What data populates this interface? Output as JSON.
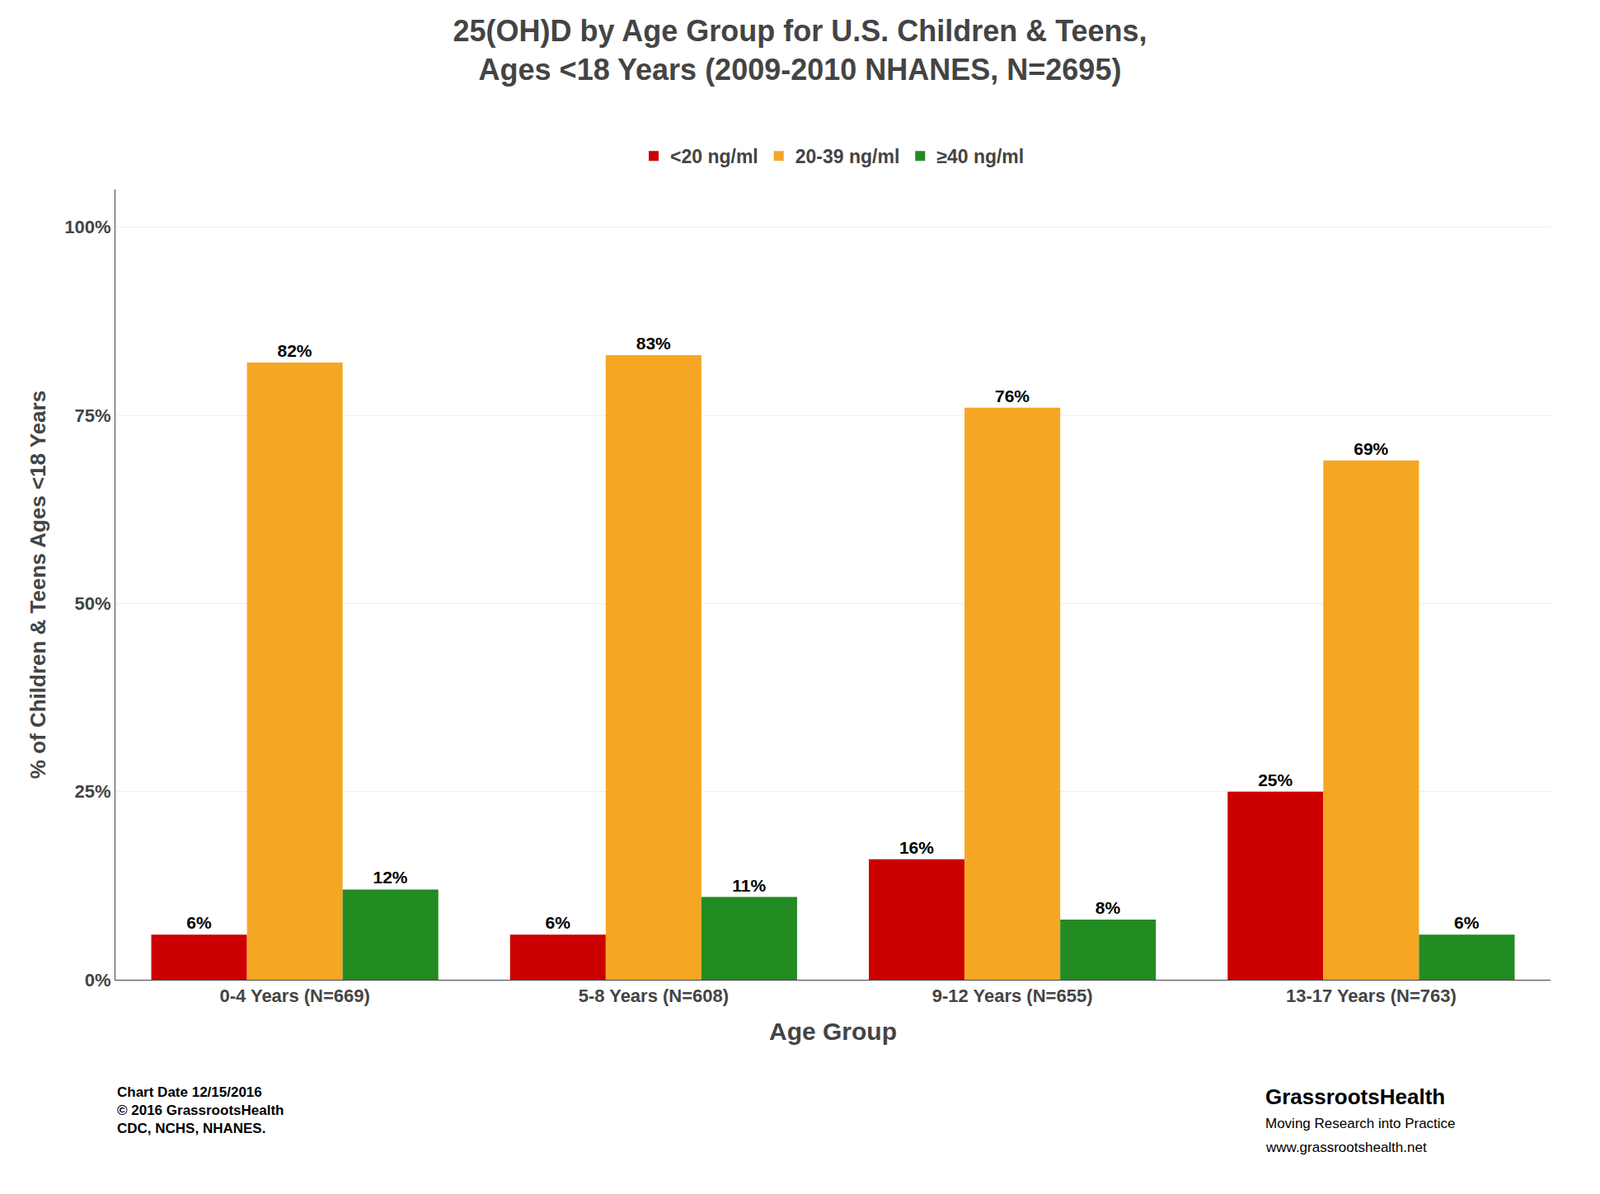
{
  "chart_data": {
    "type": "bar",
    "title": "25(OH)D by Age Group for U.S. Children & Teens,\nAges <18 Years (2009-2010 NHANES, N=2695)",
    "categories": [
      "0-4 Years (N=669)",
      "5-8 Years (N=608)",
      "9-12 Years (N=655)",
      "13-17 Years (N=763)"
    ],
    "series": [
      {
        "name": "<20 ng/ml",
        "color": "#CC0000",
        "values": [
          6,
          6,
          16,
          25
        ],
        "value_labels": [
          "6%",
          "6%",
          "16%",
          "25%"
        ]
      },
      {
        "name": "20-39 ng/ml",
        "color": "#F5A623",
        "values": [
          82,
          83,
          76,
          69
        ],
        "value_labels": [
          "82%",
          "83%",
          "76%",
          "69%"
        ]
      },
      {
        "name": "≥40 ng/ml",
        "color": "#228B22",
        "values": [
          12,
          11,
          8,
          6
        ],
        "value_labels": [
          "12%",
          "11%",
          "8%",
          "6%"
        ]
      }
    ],
    "ylabel": "% of Children & Teens Ages <18 Years",
    "xlabel": "Age Group",
    "ylim": [
      0,
      105
    ],
    "yticks": [
      {
        "value": 0,
        "label": "0%"
      },
      {
        "value": 25,
        "label": "25%"
      },
      {
        "value": 50,
        "label": "50%"
      },
      {
        "value": 75,
        "label": "75%"
      },
      {
        "value": 100,
        "label": "100%"
      }
    ],
    "grid": true,
    "legend": "top",
    "data_labels": true,
    "annotations": [
      "Chart Date 12/15/2016\n© 2016 GrassrootsHealth\nCDC, NCHS, NHANES.",
      "GrassrootsHealth",
      "Moving Research into Practice",
      "www.grassrootshealth.net"
    ]
  }
}
